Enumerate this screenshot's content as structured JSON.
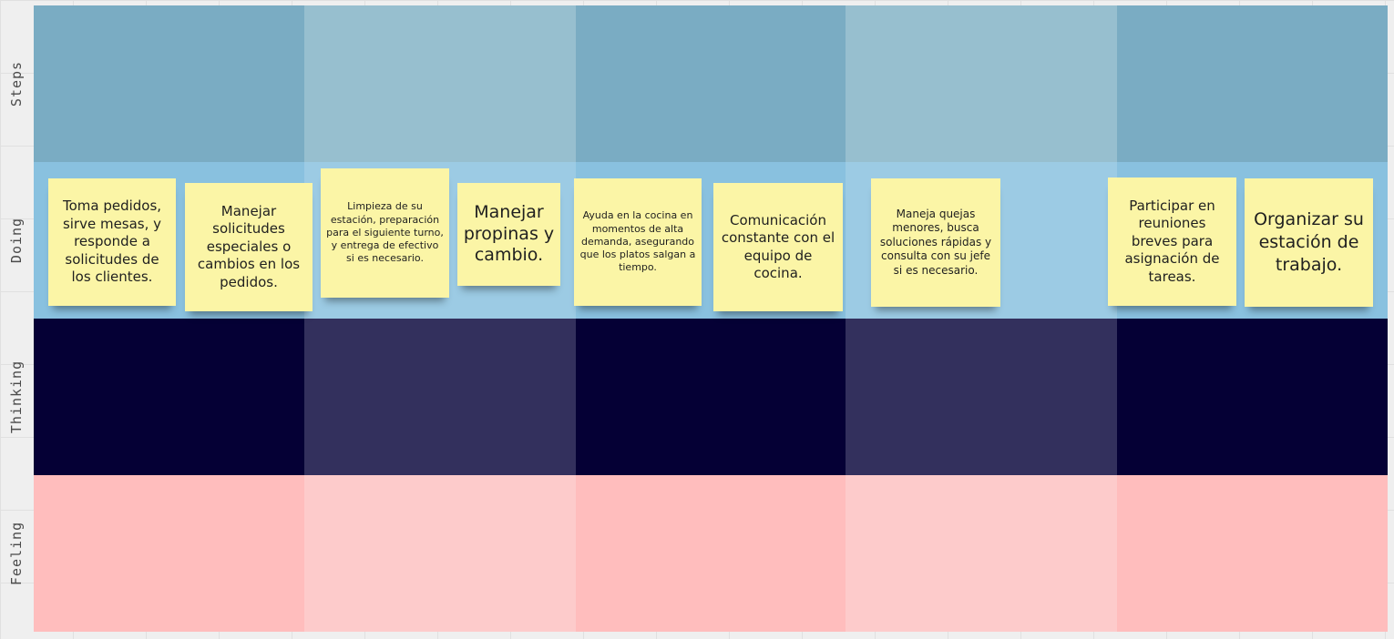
{
  "rows": {
    "steps": "Steps",
    "doing": "Doing",
    "thinking": "Thinking",
    "feeling": "Feeling"
  },
  "notes": [
    "Toma pedidos, sirve mesas, y responde a solicitudes de los clientes.",
    "Manejar solicitudes especiales o cambios en los pedidos.",
    "Limpieza de su estación, preparación para el siguiente turno, y entrega de efectivo si es necesario.",
    "Manejar propinas y cambio.",
    "Ayuda en la cocina en momentos de alta demanda, asegurando que los platos salgan a tiempo.",
    "Comunicación constante con el equipo de cocina.",
    "Maneja quejas menores, busca soluciones rápidas y consulta con su jefe si es necesario.",
    "Participar en reuniones breves para asignación de tareas.",
    "Organizar su estación de trabajo."
  ],
  "colors": {
    "steps_dark": "#7aacc3",
    "steps_light": "#97bfcf",
    "doing_dark": "#89c1df",
    "doing_light": "#9ccbe4",
    "thinking_dark": "#050035",
    "thinking_light": "#33305d",
    "feeling_dark": "#ffbdbd",
    "feeling_light": "#fdcbcb",
    "sticky": "#fbf5a6"
  }
}
